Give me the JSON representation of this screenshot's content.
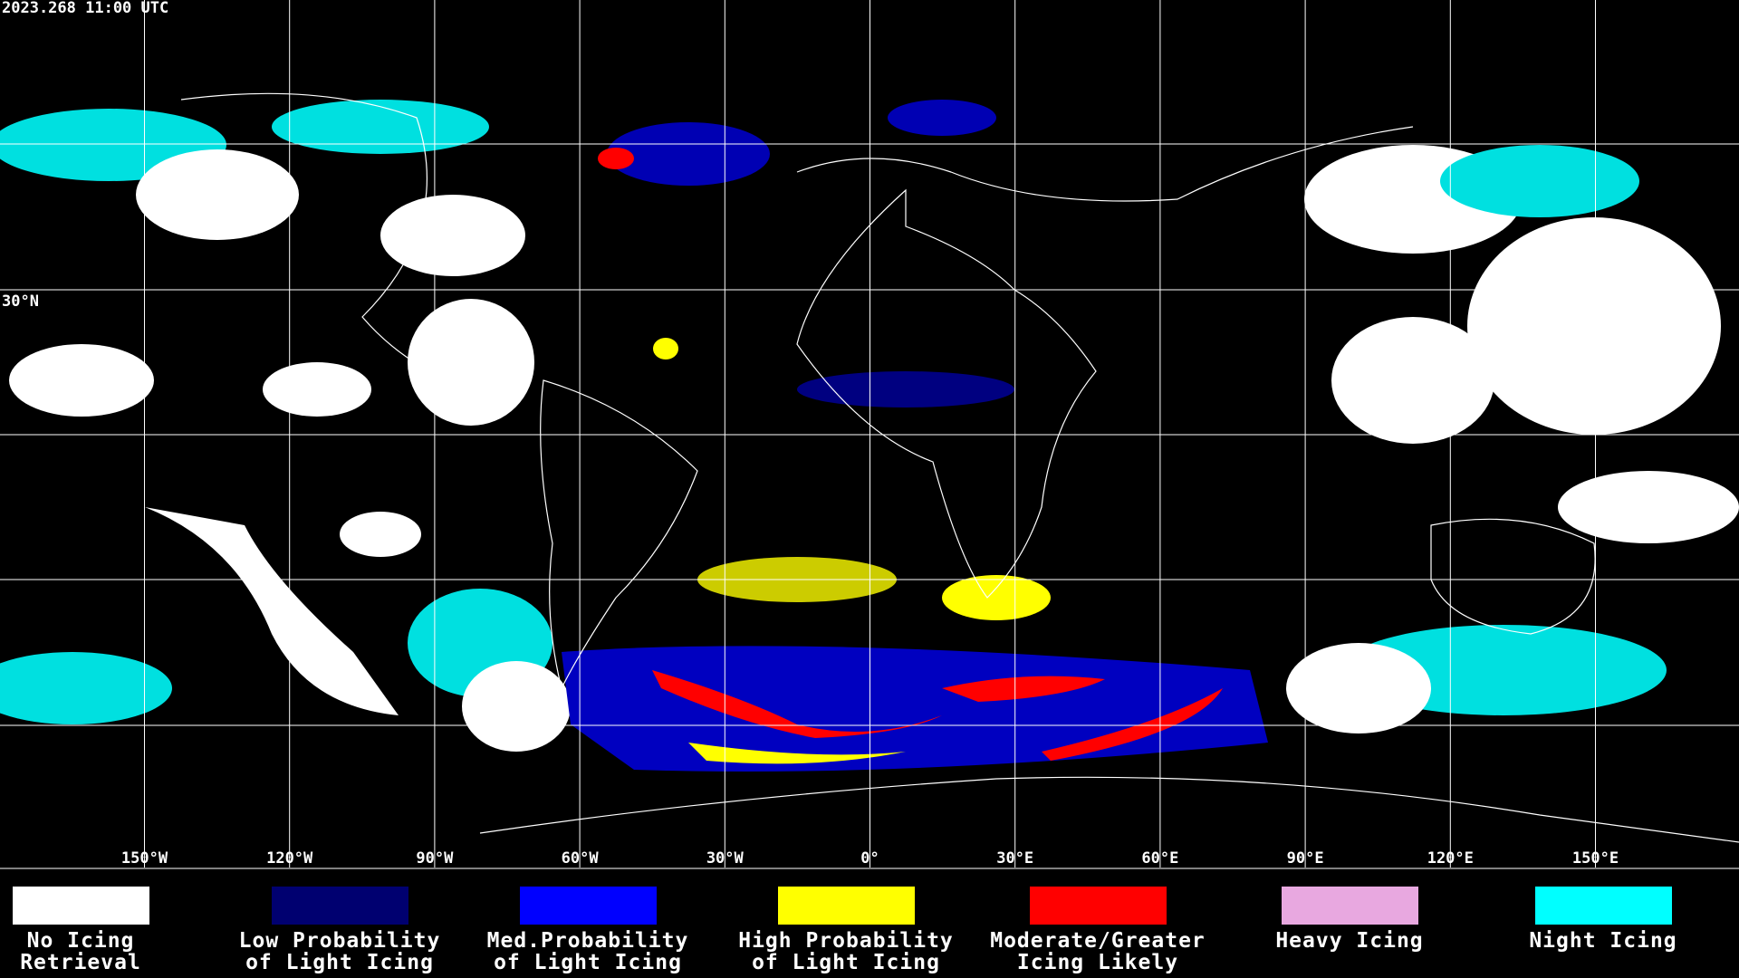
{
  "header": {
    "timestamp": "2023.268 11:00 UTC"
  },
  "map": {
    "lon_labels": [
      "150°W",
      "120°W",
      "90°W",
      "60°W",
      "30°W",
      "0°",
      "30°E",
      "60°E",
      "90°E",
      "120°E",
      "150°E"
    ],
    "lat_labels": [
      "30°N"
    ]
  },
  "legend": [
    {
      "lines": [
        "No Icing",
        "Retrieval"
      ],
      "color": "#ffffff"
    },
    {
      "lines": [
        "Low Probability",
        "of Light Icing"
      ],
      "color": "#000070"
    },
    {
      "lines": [
        "Med.Probability",
        "of Light Icing"
      ],
      "color": "#0000ff"
    },
    {
      "lines": [
        "High Probability",
        "of Light Icing"
      ],
      "color": "#ffff00"
    },
    {
      "lines": [
        "Moderate/Greater",
        "Icing Likely"
      ],
      "color": "#ff0000"
    },
    {
      "lines": [
        "Heavy Icing"
      ],
      "color": "#e8a8e0"
    },
    {
      "lines": [
        "Night Icing"
      ],
      "color": "#00ffff"
    }
  ]
}
